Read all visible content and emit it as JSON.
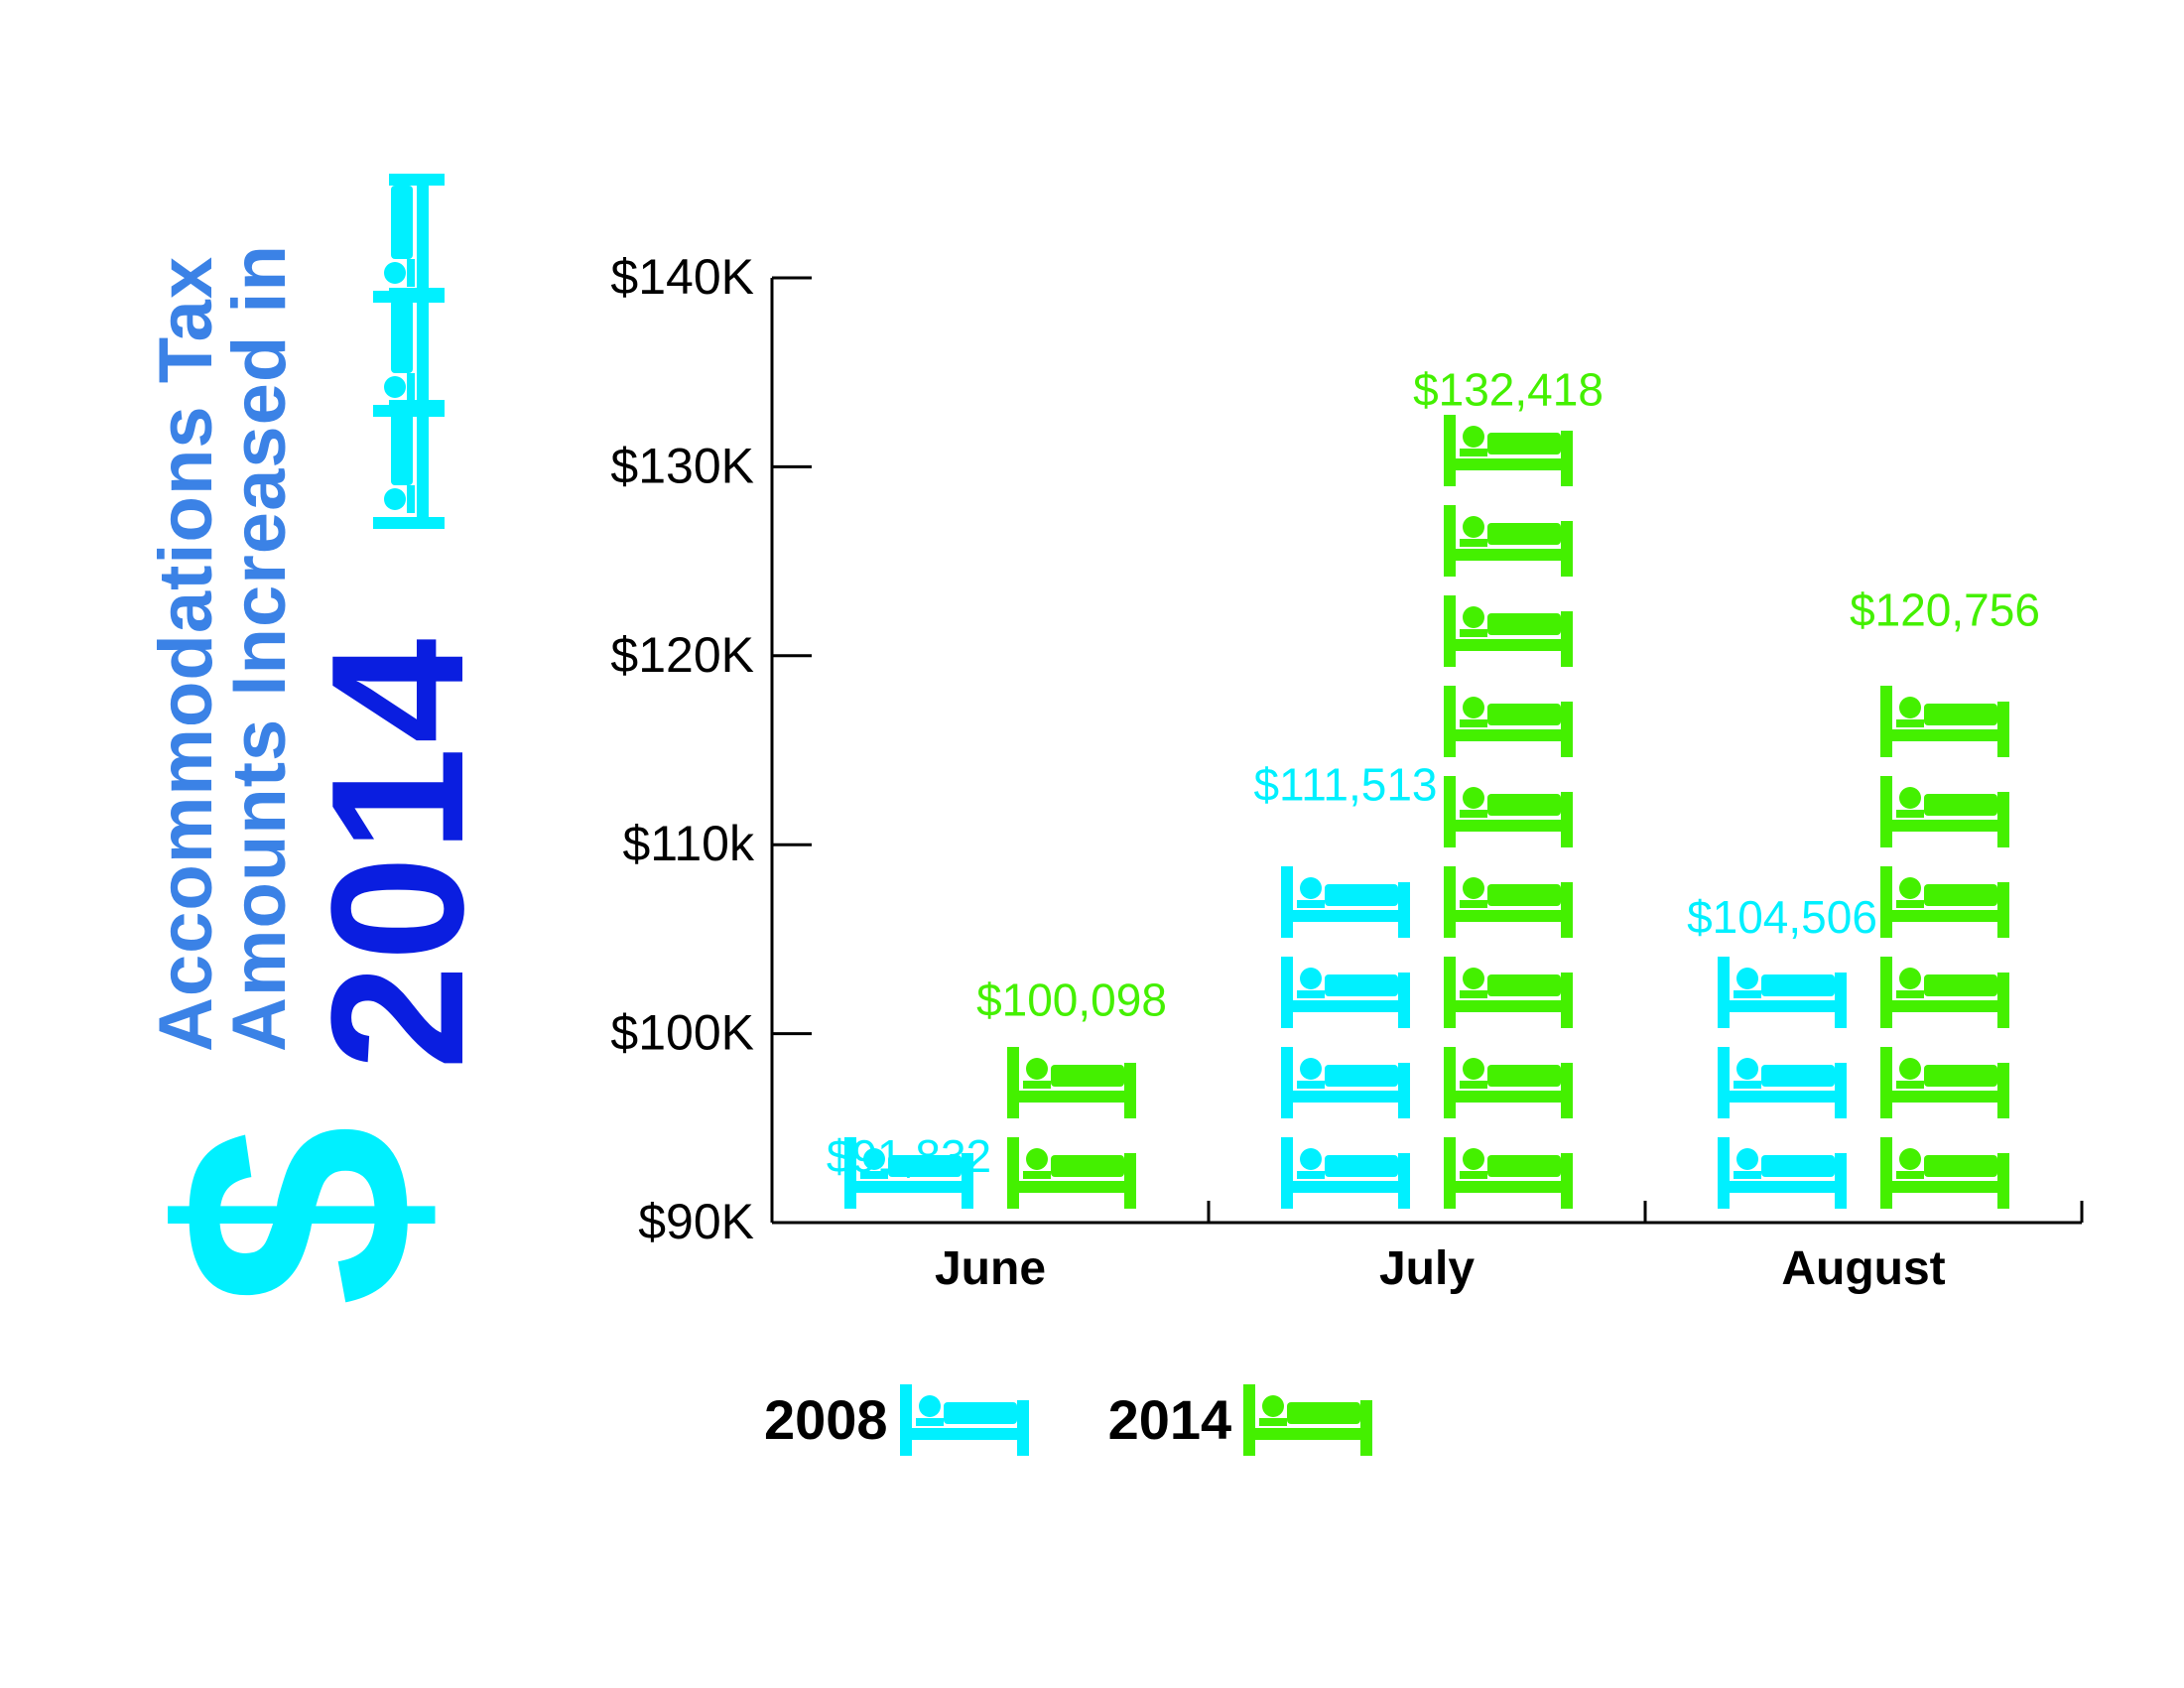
{
  "title": {
    "line1": "Accommodations Tax",
    "line2": "Amounts Increased in",
    "year": "2014",
    "symbol": "$"
  },
  "colors": {
    "s2008": "#00f0ff",
    "s2014": "#44f000",
    "title_light": "#3b82e6",
    "title_dark": "#0a1ee0",
    "axis": "#000000"
  },
  "icon": "bed-icon",
  "chart_data": {
    "type": "bar",
    "categories": [
      "June",
      "July",
      "August"
    ],
    "series": [
      {
        "name": "2008",
        "values": [
          91832,
          111513,
          104506
        ],
        "labels": [
          "$91,832",
          "$111,513",
          "$104,506"
        ],
        "color": "#00f0ff"
      },
      {
        "name": "2014",
        "values": [
          100098,
          132418,
          120756
        ],
        "labels": [
          "$100,098",
          "$132,418",
          "$120,756"
        ],
        "color": "#44f000"
      }
    ],
    "ylim": [
      90000,
      140000
    ],
    "yticks": [
      {
        "value": 90000,
        "label": "$90K"
      },
      {
        "value": 100000,
        "label": "$100K"
      },
      {
        "value": 110000,
        "label": "$110k"
      },
      {
        "value": 120000,
        "label": "$120K"
      },
      {
        "value": 130000,
        "label": "$130K"
      },
      {
        "value": 140000,
        "label": "$140K"
      }
    ],
    "xlabel": "",
    "ylabel": "",
    "legend_placement": "bottom-left"
  }
}
